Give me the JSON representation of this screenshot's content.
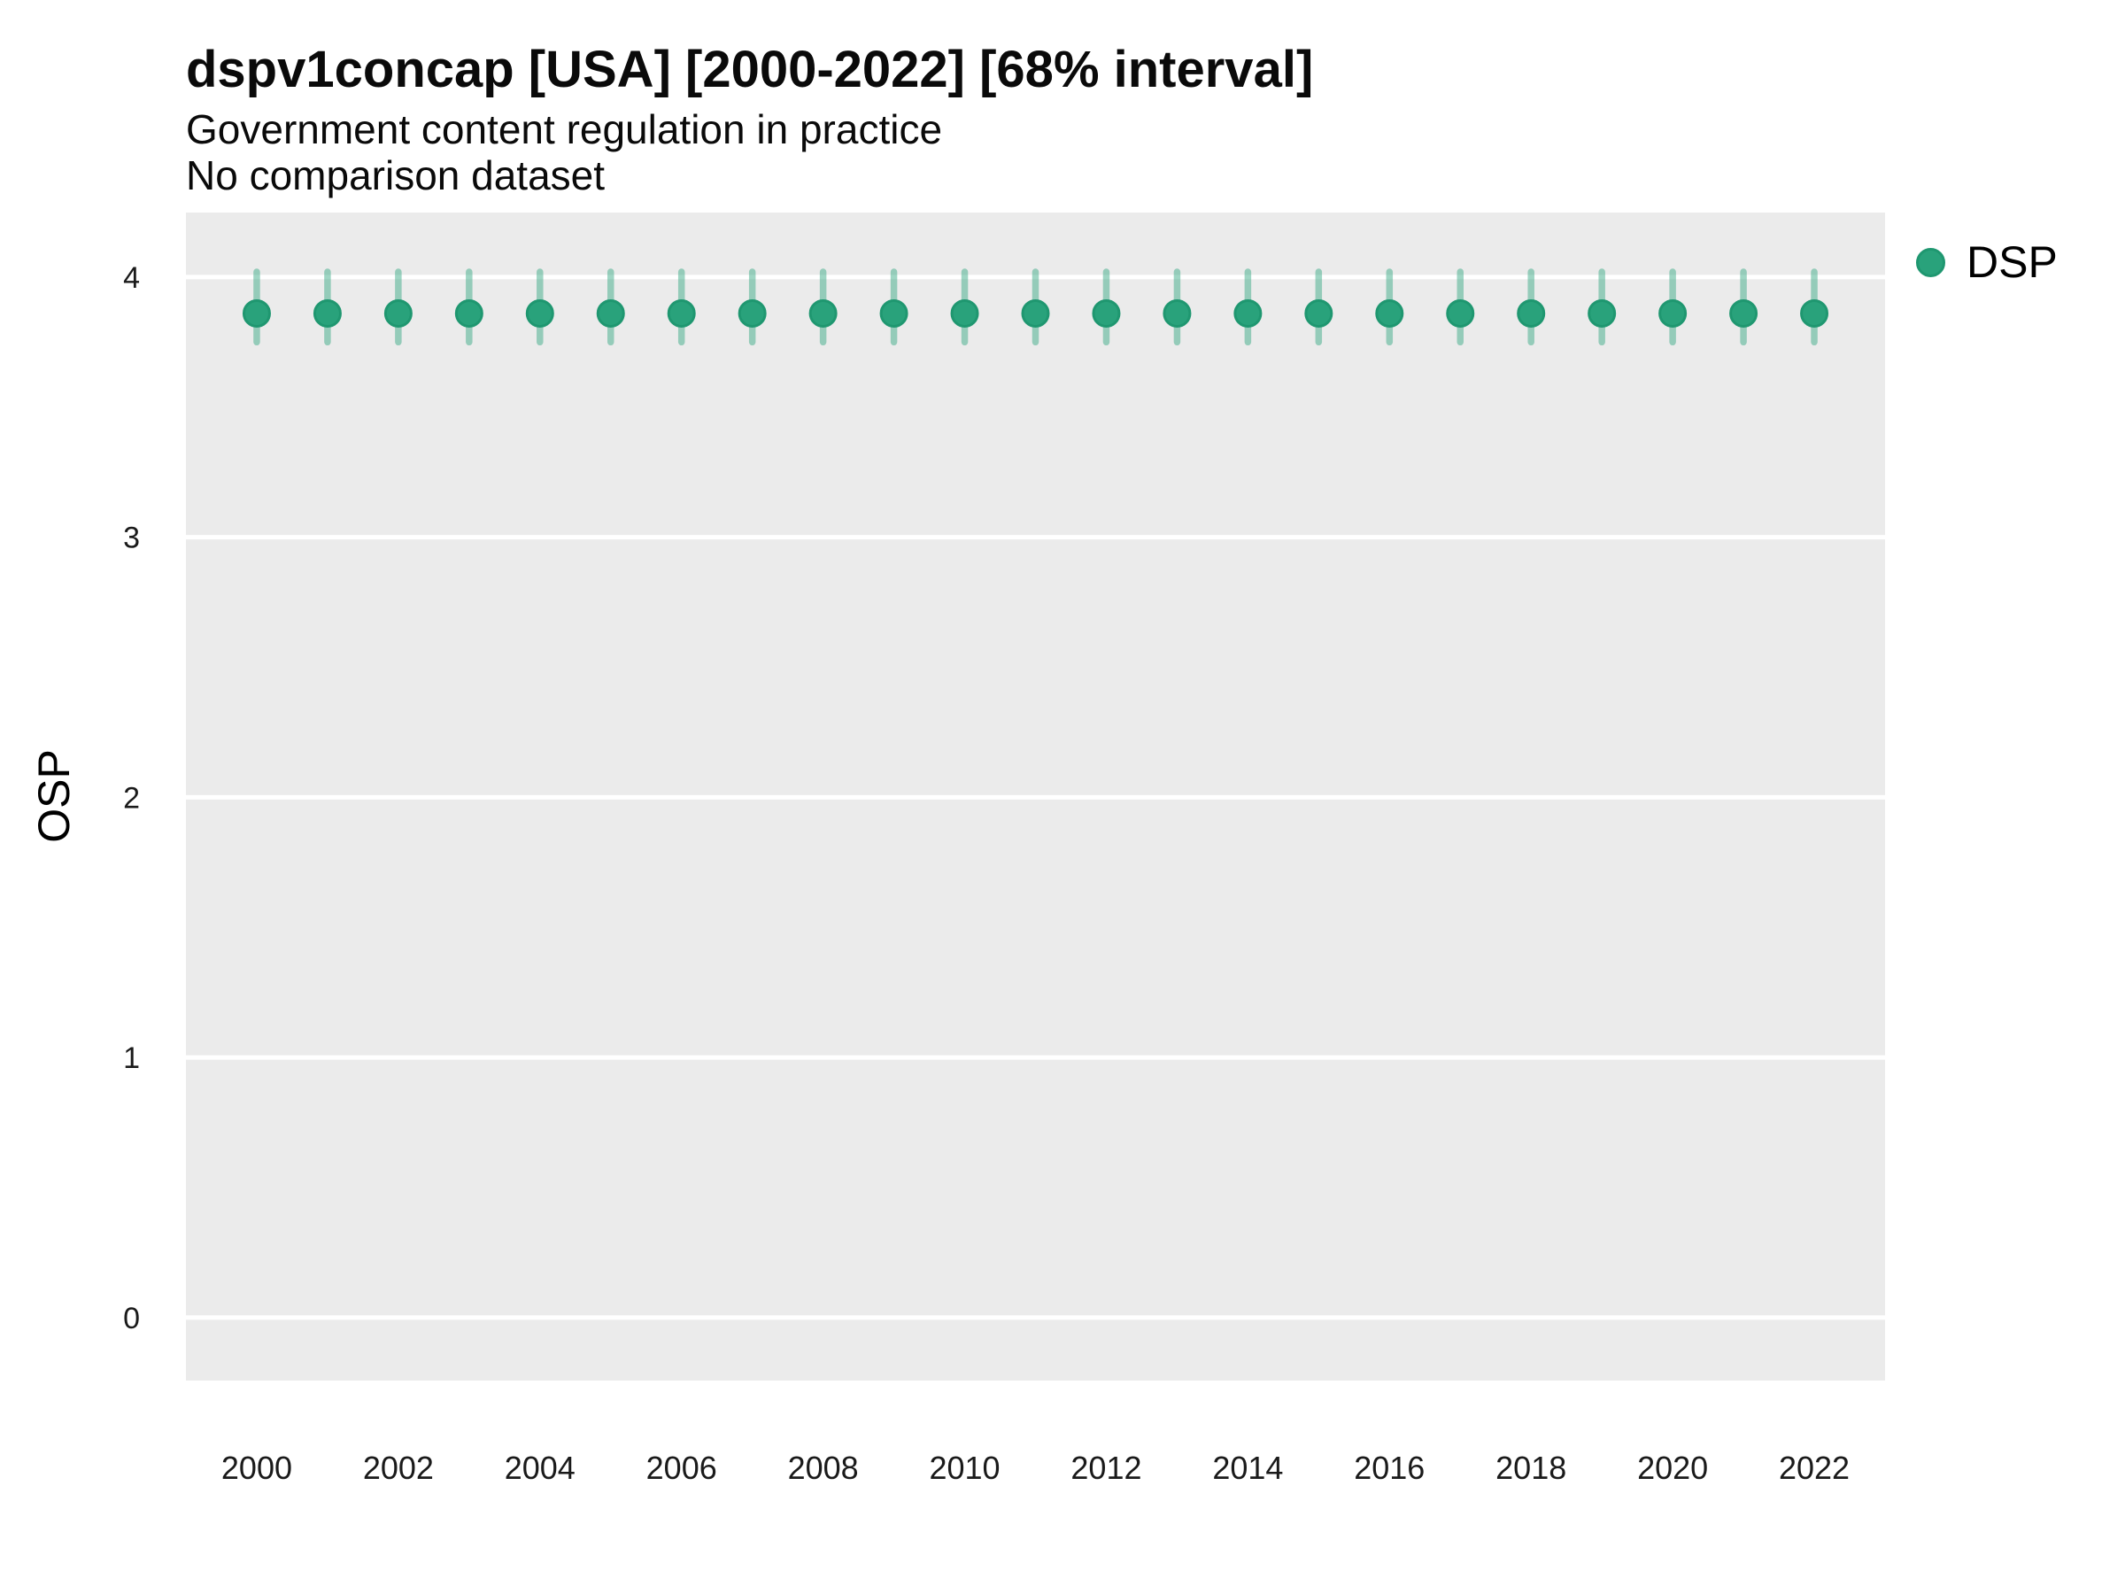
{
  "header": {
    "title": "dspv1concap [USA] [2000-2022] [68% interval]",
    "subtitle1": "Government content regulation in practice",
    "subtitle2": "No comparison dataset"
  },
  "legend": {
    "position": "right-top",
    "items": [
      {
        "label": "DSP",
        "color": "#29A27B",
        "border_color": "#1F9770"
      }
    ]
  },
  "chart_data": {
    "type": "scatter",
    "title": "dspv1concap [USA] [2000-2022] [68% interval]",
    "subtitle": [
      "Government content regulation in practice",
      "No comparison dataset"
    ],
    "interval_note": "68% interval",
    "xlabel": "",
    "ylabel": "OSP",
    "x": [
      2000,
      2001,
      2002,
      2003,
      2004,
      2005,
      2006,
      2007,
      2008,
      2009,
      2010,
      2011,
      2012,
      2013,
      2014,
      2015,
      2016,
      2017,
      2018,
      2019,
      2020,
      2021,
      2022
    ],
    "series": [
      {
        "name": "DSP",
        "color": "#29A27B",
        "stroke_color": "#1F9770",
        "interval_color": "rgba(42,163,124,0.45)",
        "y": [
          3.86,
          3.86,
          3.86,
          3.86,
          3.86,
          3.86,
          3.86,
          3.86,
          3.86,
          3.86,
          3.86,
          3.86,
          3.86,
          3.86,
          3.86,
          3.86,
          3.86,
          3.86,
          3.86,
          3.86,
          3.86,
          3.86,
          3.86
        ],
        "low": [
          3.75,
          3.75,
          3.75,
          3.75,
          3.75,
          3.75,
          3.75,
          3.75,
          3.75,
          3.75,
          3.75,
          3.75,
          3.75,
          3.75,
          3.75,
          3.75,
          3.75,
          3.75,
          3.75,
          3.75,
          3.75,
          3.75,
          3.75
        ],
        "high": [
          4.02,
          4.02,
          4.02,
          4.02,
          4.02,
          4.02,
          4.02,
          4.02,
          4.02,
          4.02,
          4.02,
          4.02,
          4.02,
          4.02,
          4.02,
          4.02,
          4.02,
          4.02,
          4.02,
          4.02,
          4.02,
          4.02,
          4.02
        ]
      }
    ],
    "x_ticks": [
      2000,
      2002,
      2004,
      2006,
      2008,
      2010,
      2012,
      2014,
      2016,
      2018,
      2020,
      2022
    ],
    "y_ticks": [
      0,
      1,
      2,
      3,
      4
    ],
    "xlim": [
      1999,
      2023
    ],
    "ylim": [
      -0.242,
      4.248
    ],
    "grid": "horizontal-major-only",
    "panel_bg": "#EBEBEB",
    "grid_color": "#FFFFFF",
    "tick_text_color": "#1a1a1a",
    "axis_title_color": "#000000"
  }
}
